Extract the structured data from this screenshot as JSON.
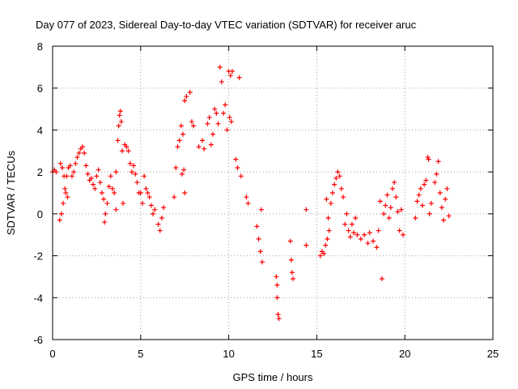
{
  "chart_data": {
    "type": "scatter",
    "title": "Day 077 of 2023, Sidereal Day-to-day VTEC variation (SDTVAR) for receiver aruc",
    "xlabel": "GPS time / hours",
    "ylabel": "SDTVAR / TECUs",
    "xlim": [
      0,
      25
    ],
    "ylim": [
      -6,
      8
    ],
    "xticks": [
      "0",
      "5",
      "10",
      "15",
      "20",
      "25"
    ],
    "yticks": [
      "-6",
      "-4",
      "-2",
      "0",
      "2",
      "4",
      "6",
      "8"
    ],
    "grid": true,
    "marker": "plus",
    "series": [
      {
        "name": "SDTVAR",
        "color": "#ff0000",
        "points": [
          [
            0.0,
            2.0
          ],
          [
            0.1,
            2.1
          ],
          [
            0.2,
            2.0
          ],
          [
            0.4,
            -0.3
          ],
          [
            0.5,
            0.0
          ],
          [
            0.6,
            0.5
          ],
          [
            0.7,
            1.2
          ],
          [
            0.8,
            1.8
          ],
          [
            0.9,
            2.2
          ],
          [
            0.45,
            2.4
          ],
          [
            0.55,
            2.2
          ],
          [
            0.65,
            1.8
          ],
          [
            0.75,
            1.0
          ],
          [
            0.85,
            0.8
          ],
          [
            1.0,
            2.3
          ],
          [
            1.1,
            1.8
          ],
          [
            1.2,
            2.0
          ],
          [
            1.3,
            2.4
          ],
          [
            1.4,
            2.7
          ],
          [
            1.5,
            2.9
          ],
          [
            1.6,
            3.1
          ],
          [
            1.7,
            3.2
          ],
          [
            1.8,
            2.9
          ],
          [
            1.9,
            2.3
          ],
          [
            2.0,
            1.9
          ],
          [
            2.1,
            1.6
          ],
          [
            2.2,
            1.7
          ],
          [
            2.3,
            1.4
          ],
          [
            2.4,
            1.2
          ],
          [
            2.5,
            1.8
          ],
          [
            2.6,
            2.1
          ],
          [
            2.7,
            1.5
          ],
          [
            2.8,
            1.0
          ],
          [
            2.9,
            0.7
          ],
          [
            2.95,
            -0.4
          ],
          [
            3.0,
            0.0
          ],
          [
            3.1,
            0.5
          ],
          [
            3.2,
            1.3
          ],
          [
            3.3,
            1.8
          ],
          [
            3.4,
            1.2
          ],
          [
            3.5,
            1.0
          ],
          [
            3.6,
            0.2
          ],
          [
            3.6,
            2.0
          ],
          [
            3.7,
            3.5
          ],
          [
            3.75,
            4.2
          ],
          [
            3.8,
            4.7
          ],
          [
            3.85,
            4.9
          ],
          [
            3.9,
            4.4
          ],
          [
            3.95,
            3.0
          ],
          [
            4.0,
            0.5
          ],
          [
            4.1,
            3.3
          ],
          [
            4.2,
            3.2
          ],
          [
            4.3,
            3.0
          ],
          [
            4.4,
            2.4
          ],
          [
            4.5,
            2.0
          ],
          [
            4.6,
            2.3
          ],
          [
            4.7,
            1.9
          ],
          [
            4.8,
            1.5
          ],
          [
            4.9,
            1.0
          ],
          [
            5.0,
            1.0
          ],
          [
            5.1,
            0.5
          ],
          [
            5.2,
            1.8
          ],
          [
            5.3,
            1.2
          ],
          [
            5.4,
            1.0
          ],
          [
            5.5,
            0.8
          ],
          [
            5.6,
            0.4
          ],
          [
            5.7,
            0.0
          ],
          [
            5.8,
            0.2
          ],
          [
            6.0,
            -0.5
          ],
          [
            6.1,
            -0.8
          ],
          [
            6.2,
            -0.2
          ],
          [
            6.3,
            0.3
          ],
          [
            6.9,
            0.8
          ],
          [
            7.0,
            2.2
          ],
          [
            7.1,
            3.2
          ],
          [
            7.2,
            3.5
          ],
          [
            7.3,
            4.2
          ],
          [
            7.4,
            3.8
          ],
          [
            7.5,
            5.4
          ],
          [
            7.6,
            5.6
          ],
          [
            7.35,
            1.9
          ],
          [
            7.45,
            2.1
          ],
          [
            7.5,
            1.0
          ],
          [
            7.8,
            5.8
          ],
          [
            7.9,
            4.4
          ],
          [
            8.0,
            4.2
          ],
          [
            8.3,
            3.2
          ],
          [
            8.5,
            3.5
          ],
          [
            8.6,
            3.1
          ],
          [
            8.8,
            4.3
          ],
          [
            8.9,
            4.6
          ],
          [
            9.0,
            3.3
          ],
          [
            9.1,
            3.8
          ],
          [
            9.2,
            5.0
          ],
          [
            9.3,
            4.8
          ],
          [
            9.4,
            4.3
          ],
          [
            9.5,
            7.0
          ],
          [
            9.6,
            6.3
          ],
          [
            9.7,
            4.8
          ],
          [
            9.8,
            5.2
          ],
          [
            9.9,
            4.0
          ],
          [
            10.0,
            6.8
          ],
          [
            10.1,
            6.6
          ],
          [
            10.2,
            6.8
          ],
          [
            10.05,
            4.6
          ],
          [
            10.15,
            4.4
          ],
          [
            10.4,
            2.6
          ],
          [
            10.5,
            2.2
          ],
          [
            10.6,
            6.5
          ],
          [
            10.7,
            1.8
          ],
          [
            11.0,
            0.8
          ],
          [
            11.1,
            0.5
          ],
          [
            11.6,
            -0.6
          ],
          [
            11.7,
            -1.2
          ],
          [
            11.8,
            -1.8
          ],
          [
            11.9,
            -2.3
          ],
          [
            11.85,
            0.2
          ],
          [
            12.7,
            -3.0
          ],
          [
            12.75,
            -4.0
          ],
          [
            12.8,
            -4.8
          ],
          [
            12.85,
            -5.0
          ],
          [
            12.75,
            -3.4
          ],
          [
            13.5,
            -1.3
          ],
          [
            13.55,
            -2.2
          ],
          [
            13.6,
            -2.8
          ],
          [
            13.65,
            -3.1
          ],
          [
            14.4,
            0.2
          ],
          [
            14.4,
            -1.5
          ],
          [
            15.2,
            -2.0
          ],
          [
            15.3,
            -1.8
          ],
          [
            15.4,
            -1.9
          ],
          [
            15.5,
            -1.5
          ],
          [
            15.6,
            -1.2
          ],
          [
            15.7,
            -0.8
          ],
          [
            15.55,
            0.7
          ],
          [
            15.65,
            -0.2
          ],
          [
            15.8,
            0.5
          ],
          [
            15.9,
            1.0
          ],
          [
            16.0,
            1.4
          ],
          [
            16.1,
            1.7
          ],
          [
            16.2,
            2.0
          ],
          [
            16.3,
            1.8
          ],
          [
            16.4,
            1.2
          ],
          [
            16.5,
            0.8
          ],
          [
            16.6,
            -0.5
          ],
          [
            16.7,
            0.0
          ],
          [
            16.8,
            -0.8
          ],
          [
            16.9,
            -1.1
          ],
          [
            17.0,
            -0.5
          ],
          [
            17.1,
            -0.9
          ],
          [
            17.2,
            -0.2
          ],
          [
            17.3,
            -1.0
          ],
          [
            17.5,
            -1.2
          ],
          [
            17.7,
            -1.0
          ],
          [
            17.9,
            -1.4
          ],
          [
            18.0,
            -0.9
          ],
          [
            18.2,
            -1.3
          ],
          [
            18.4,
            -1.6
          ],
          [
            18.5,
            -0.8
          ],
          [
            18.6,
            0.6
          ],
          [
            18.7,
            -3.1
          ],
          [
            18.8,
            0.0
          ],
          [
            18.9,
            0.4
          ],
          [
            19.0,
            0.9
          ],
          [
            19.1,
            -0.2
          ],
          [
            19.2,
            0.3
          ],
          [
            19.3,
            1.2
          ],
          [
            19.4,
            1.5
          ],
          [
            19.5,
            0.8
          ],
          [
            19.6,
            0.1
          ],
          [
            19.7,
            -0.8
          ],
          [
            19.8,
            0.2
          ],
          [
            19.9,
            -1.0
          ],
          [
            20.6,
            -0.2
          ],
          [
            20.7,
            0.6
          ],
          [
            20.8,
            0.9
          ],
          [
            20.9,
            1.2
          ],
          [
            21.0,
            0.4
          ],
          [
            21.1,
            1.4
          ],
          [
            21.2,
            1.6
          ],
          [
            21.3,
            2.7
          ],
          [
            21.35,
            2.6
          ],
          [
            21.4,
            0.0
          ],
          [
            21.5,
            0.5
          ],
          [
            21.7,
            1.5
          ],
          [
            21.8,
            1.9
          ],
          [
            21.9,
            2.5
          ],
          [
            22.0,
            1.0
          ],
          [
            22.1,
            0.3
          ],
          [
            22.2,
            -0.3
          ],
          [
            22.3,
            0.7
          ],
          [
            22.4,
            1.2
          ],
          [
            22.5,
            -0.1
          ]
        ]
      }
    ]
  }
}
